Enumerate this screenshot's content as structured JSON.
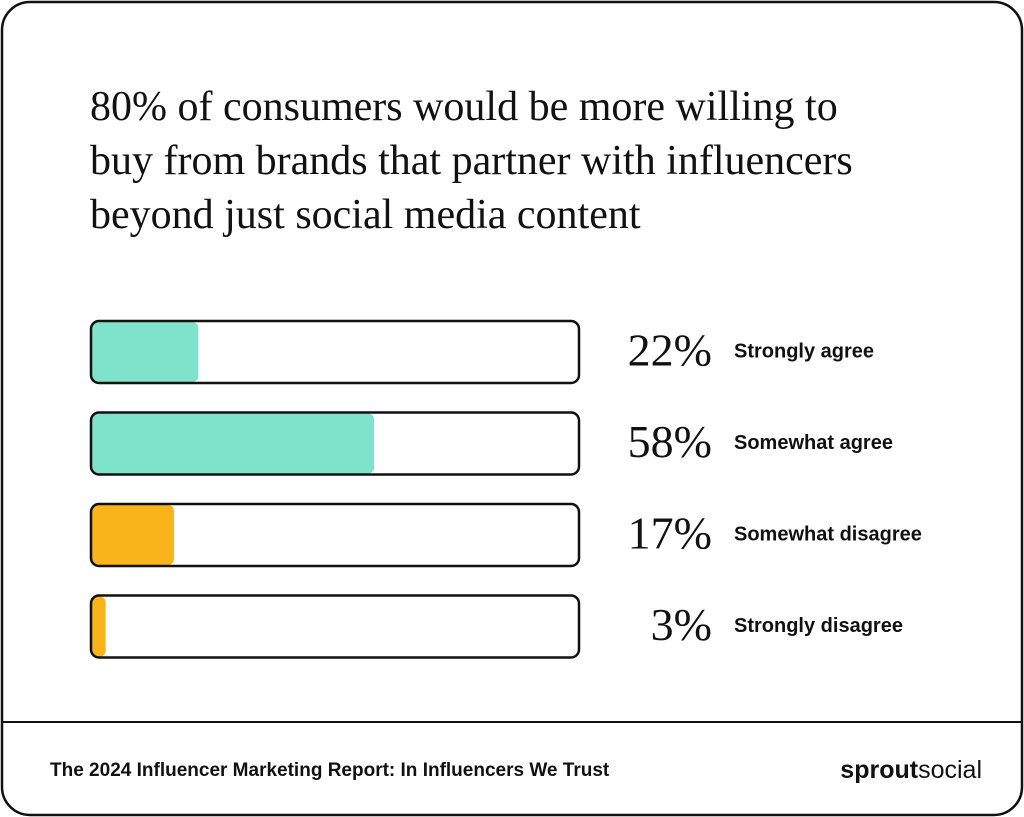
{
  "chart_data": {
    "type": "hbar",
    "title": "80% of consumers would be more willing to buy from brands that partner with influencers beyond just social media content",
    "categories": [
      "Strongly agree",
      "Somewhat agree",
      "Somewhat disagree",
      "Strongly disagree"
    ],
    "values": [
      22,
      58,
      17,
      3
    ],
    "value_labels": [
      "22%",
      "58%",
      "17%",
      "3%"
    ],
    "colors": [
      "#7fe3cc",
      "#7fe3cc",
      "#f8b41a",
      "#f8b41a"
    ],
    "xlim": [
      0,
      100
    ]
  },
  "footer": {
    "source": "The 2024 Influencer Marketing Report: In Influencers We Trust",
    "brand": [
      "sprout",
      "social"
    ]
  }
}
